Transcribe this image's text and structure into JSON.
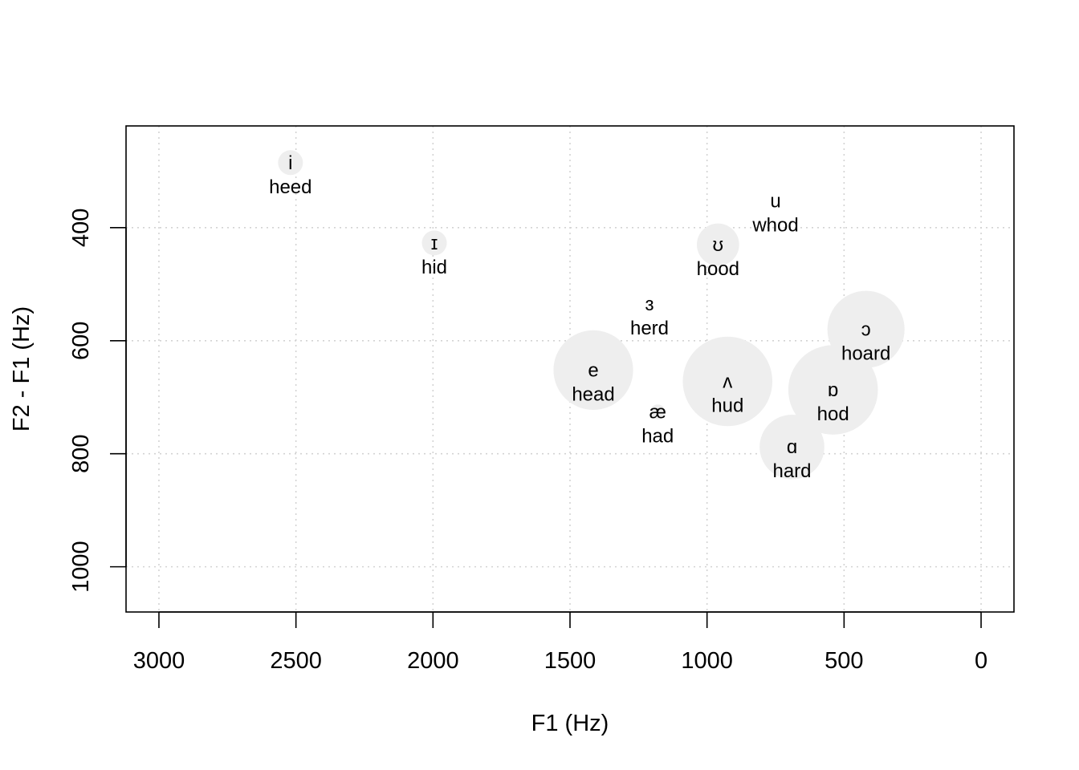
{
  "chart_data": {
    "type": "scatter",
    "title": "",
    "xlabel": "F1 (Hz)",
    "ylabel": "F2 - F1 (Hz)",
    "xlim": [
      3120,
      -120
    ],
    "ylim": [
      220,
      1080
    ],
    "x_ticks": [
      3000,
      2500,
      2000,
      1500,
      1000,
      500,
      0
    ],
    "y_ticks": [
      400,
      600,
      800,
      1000
    ],
    "x_reversed": true,
    "y_reversed": true,
    "grid": true,
    "grid_style": "dotted",
    "bubble_color": "#eeeeee",
    "points": [
      {
        "symbol": "i",
        "word": "heed",
        "x": 2520,
        "y": 285,
        "size": 1
      },
      {
        "symbol": "ɪ",
        "word": "hid",
        "x": 1995,
        "y": 427,
        "size": 1
      },
      {
        "symbol": "u",
        "word": "whod",
        "x": 750,
        "y": 353,
        "size": 0
      },
      {
        "symbol": "ʊ",
        "word": "hood",
        "x": 960,
        "y": 430,
        "size": 1.7
      },
      {
        "symbol": "ɜ",
        "word": "herd",
        "x": 1210,
        "y": 535,
        "size": 0
      },
      {
        "symbol": "ɔ",
        "word": "hoard",
        "x": 420,
        "y": 580,
        "size": 3.1
      },
      {
        "symbol": "e",
        "word": "head",
        "x": 1415,
        "y": 652,
        "size": 3.2
      },
      {
        "symbol": "ʌ",
        "word": "hud",
        "x": 925,
        "y": 672,
        "size": 3.6
      },
      {
        "symbol": "ɒ",
        "word": "hod",
        "x": 540,
        "y": 687,
        "size": 3.6
      },
      {
        "symbol": "æ",
        "word": "had",
        "x": 1180,
        "y": 726,
        "size": 0.6
      },
      {
        "symbol": "ɑ",
        "word": "hard",
        "x": 690,
        "y": 788,
        "size": 2.6
      }
    ]
  }
}
